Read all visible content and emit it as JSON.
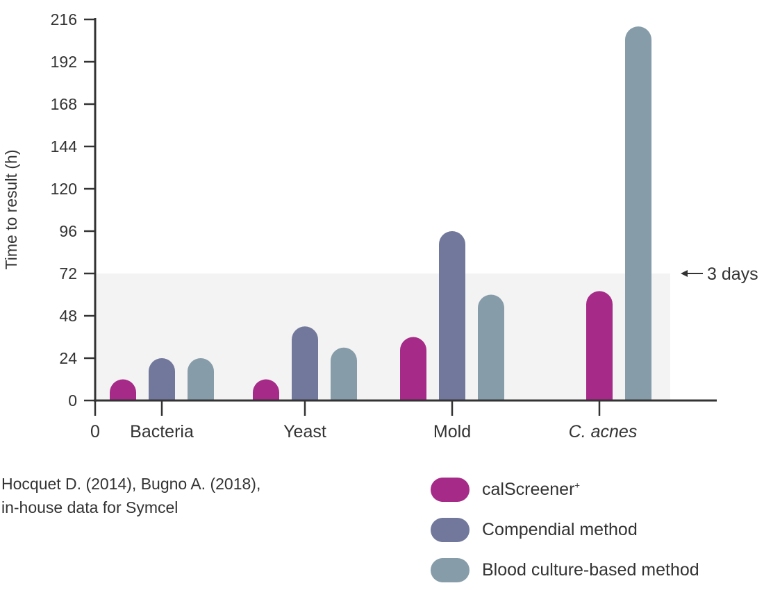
{
  "chart_data": {
    "type": "bar",
    "title": "",
    "xlabel": "",
    "ylabel": "Time to result (h)",
    "ylim": [
      0,
      216
    ],
    "yticks": [
      0,
      24,
      48,
      72,
      96,
      120,
      144,
      168,
      192,
      216
    ],
    "x_origin_label": "0",
    "categories": [
      "Bacteria",
      "Yeast",
      "Mold",
      "C. acnes"
    ],
    "series": [
      {
        "name": "calScreener",
        "name_superscript": "+",
        "color": "#a62a87",
        "values": [
          12,
          12,
          36,
          62
        ]
      },
      {
        "name": "Compendial method",
        "color": "#71789b",
        "values": [
          24,
          42,
          96,
          null
        ]
      },
      {
        "name": "Blood culture-based method",
        "color": "#869ca9",
        "values": [
          24,
          30,
          60,
          212
        ]
      }
    ],
    "shaded_band": {
      "from": 0,
      "to": 72,
      "color": "#f3f3f3"
    },
    "annotation": {
      "text": "3 days",
      "arrow": "left-arrow",
      "at": 72
    },
    "grid": false,
    "legend_placement": "bottom-right"
  },
  "source_note": [
    "Hocquet D. (2014), Bugno A. (2018),",
    "in-house data for Symcel"
  ]
}
